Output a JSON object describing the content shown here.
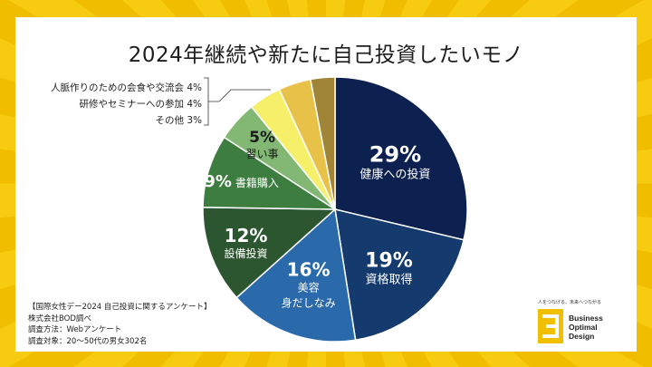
{
  "chart_data": {
    "type": "pie",
    "title": "2024年継続や新たに自己投資したいモノ",
    "slices": [
      {
        "label": "健康への投資",
        "value": 29,
        "value_label": "29%",
        "color": "#0d2151",
        "text_color": "#ffffff"
      },
      {
        "label": "資格取得",
        "value": 19,
        "value_label": "19%",
        "color": "#143a6e",
        "text_color": "#ffffff"
      },
      {
        "label": "美容\n身だしなみ",
        "value": 16,
        "value_label": "16%",
        "color": "#2a6aaa",
        "text_color": "#ffffff"
      },
      {
        "label": "設備投資",
        "value": 12,
        "value_label": "12%",
        "color": "#2c5630",
        "text_color": "#ffffff"
      },
      {
        "label": "書籍購入",
        "value": 9,
        "value_label": "9%",
        "color": "#3e7d40",
        "text_color": "#ffffff"
      },
      {
        "label": "習い事",
        "value": 5,
        "value_label": "5%",
        "color": "#82b874",
        "text_color": "#1a1a1a"
      },
      {
        "label": "研修やセミナーへの参加",
        "value": 4,
        "value_label": "4%",
        "color": "#f6ef6a",
        "text_color": "#1a1a1a"
      },
      {
        "label": "人脈作りのための会食や交流会",
        "value": 4,
        "value_label": "4%",
        "color": "#e8c248",
        "text_color": "#1a1a1a"
      },
      {
        "label": "その他",
        "value": 3,
        "value_label": "3%",
        "color": "#a08536",
        "text_color": "#1a1a1a"
      }
    ],
    "callouts": [
      "人脈作りのための会食や交流会 4%",
      "研修やセミナーへの参加 4%",
      "その他 3%"
    ]
  },
  "notes": {
    "survey_name": "【国際女性デー2024 自己投資に関するアンケート】",
    "company": "株式会社BOD調べ",
    "method": "調査方法：Webアンケート",
    "target": "調査対象：20〜50代の男女302名"
  },
  "logo": {
    "tagline": "人をつなげる、未来へつながる",
    "line1": "Business",
    "line2": "Optimal",
    "line3": "Design"
  },
  "colors": {
    "background": "#f5c400",
    "card": "#ffffff",
    "logo": "#f0c000"
  }
}
